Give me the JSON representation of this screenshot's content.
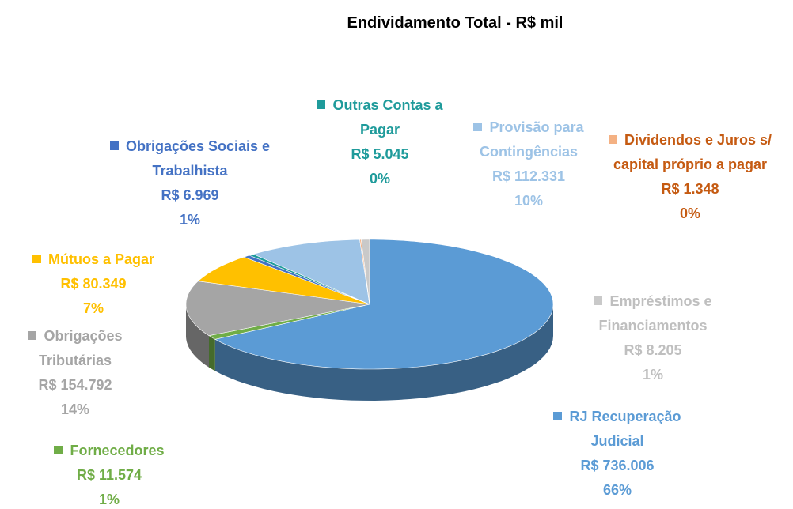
{
  "chart_data": {
    "type": "pie",
    "title": "Endividamento Total -  R$ mil",
    "categories": [
      "RJ Recuperação Judicial",
      "Fornecedores",
      "Obrigações Tributárias",
      "Mútuos a Pagar",
      "Obrigações Sociais e Trabalhista",
      "Outras Contas a Pagar",
      "Provisão para Contingências",
      "Dividendos e Juros s/ capital próprio a pagar",
      "Empréstimos e Financiamentos"
    ],
    "values": [
      736006,
      11574,
      154792,
      80349,
      6969,
      5045,
      112331,
      1348,
      8205
    ],
    "value_labels": [
      "R$ 736.006",
      "R$ 11.574",
      "R$ 154.792",
      "R$ 80.349",
      "R$ 6.969",
      "R$ 5.045",
      "R$ 112.331",
      "R$ 1.348",
      "R$ 8.205"
    ],
    "percent_labels": [
      "66%",
      "1%",
      "14%",
      "7%",
      "1%",
      "0%",
      "10%",
      "0%",
      "1%"
    ],
    "colors": [
      "#5b9bd5",
      "#70ad47",
      "#a5a5a5",
      "#ffc000",
      "#4472c4",
      "#1f9b9b",
      "#9dc3e6",
      "#f4b183",
      "#c9c9c9"
    ],
    "label_colors": [
      "#5b9bd5",
      "#70ad47",
      "#a5a5a5",
      "#ffc000",
      "#4472c4",
      "#1f9b9b",
      "#9dc3e6",
      "#c55a11",
      "#bfbfbf"
    ]
  }
}
